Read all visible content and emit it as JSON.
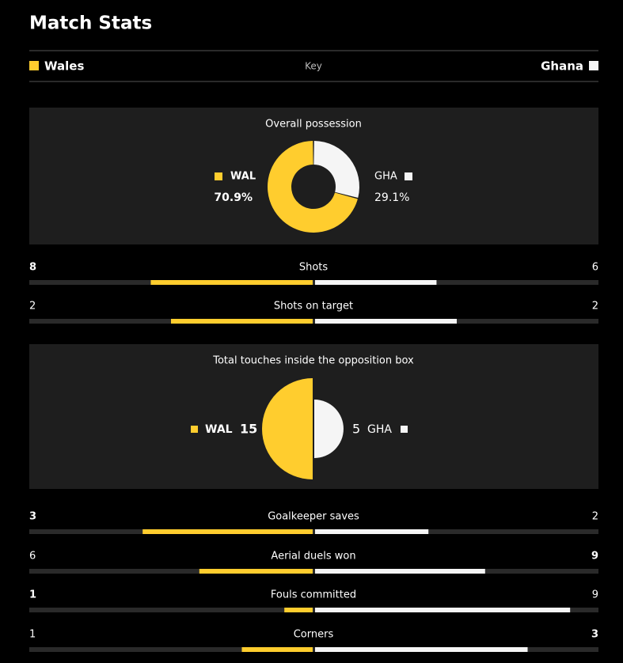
{
  "title": "Match Stats",
  "key": {
    "home": "Wales",
    "label": "Key",
    "away": "Ghana"
  },
  "home_color": "#ffcd2e",
  "away_color": "#f5f5f5",
  "possession": {
    "title": "Overall possession",
    "home_label": "WAL",
    "away_label": "GHA",
    "home": 70.9,
    "away": 29.1,
    "home_value_label": "70.9%",
    "away_value_label": "29.1%"
  },
  "touches": {
    "title": "Total touches inside the opposition box",
    "home_label": "WAL",
    "away_label": "GHA",
    "home": 15,
    "away": 5
  },
  "stats": [
    {
      "name": "Shots",
      "home": 8,
      "away": 6,
      "highlight": "home"
    },
    {
      "name": "Shots on target",
      "home": 2,
      "away": 2,
      "highlight": "none"
    },
    {
      "name": "Goalkeeper saves",
      "home": 3,
      "away": 2,
      "highlight": "home"
    },
    {
      "name": "Aerial duels won",
      "home": 6,
      "away": 9,
      "highlight": "away"
    },
    {
      "name": "Fouls committed",
      "home": 1,
      "away": 9,
      "highlight": "home"
    },
    {
      "name": "Corners",
      "home": 1,
      "away": 3,
      "highlight": "away"
    }
  ]
}
